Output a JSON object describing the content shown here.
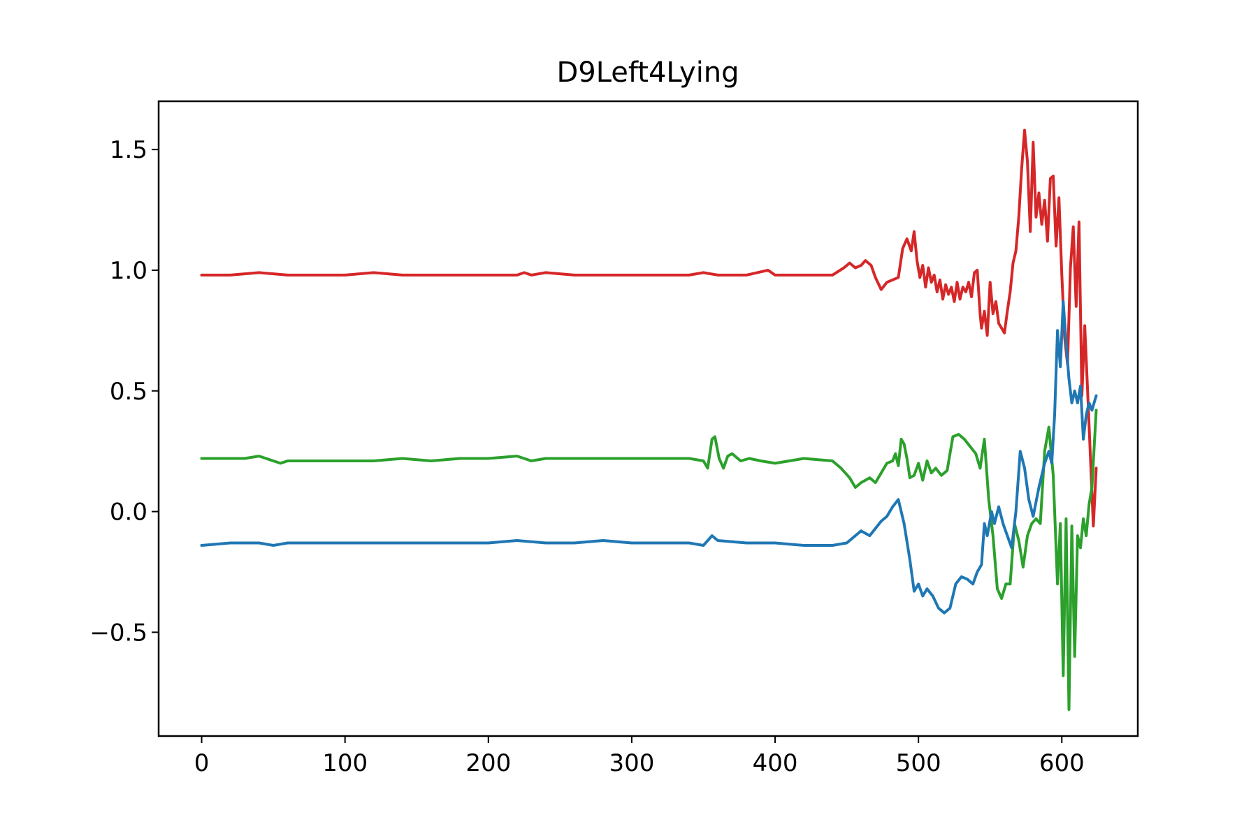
{
  "chart_data": {
    "type": "line",
    "title": "D9Left4Lying",
    "xlabel": "",
    "ylabel": "",
    "xlim": [
      -30,
      653
    ],
    "ylim": [
      -0.93,
      1.7
    ],
    "grid": false,
    "x_ticks": [
      {
        "value": 0,
        "label": "0"
      },
      {
        "value": 100,
        "label": "100"
      },
      {
        "value": 200,
        "label": "200"
      },
      {
        "value": 300,
        "label": "300"
      },
      {
        "value": 400,
        "label": "400"
      },
      {
        "value": 500,
        "label": "500"
      },
      {
        "value": 600,
        "label": "600"
      }
    ],
    "y_ticks": [
      {
        "value": -0.5,
        "label": "−0.5"
      },
      {
        "value": 0.0,
        "label": "0.0"
      },
      {
        "value": 0.5,
        "label": "0.5"
      },
      {
        "value": 1.0,
        "label": "1.0"
      },
      {
        "value": 1.5,
        "label": "1.5"
      }
    ],
    "series": [
      {
        "color": "#d62728",
        "points": [
          [
            0,
            0.98
          ],
          [
            20,
            0.98
          ],
          [
            40,
            0.99
          ],
          [
            60,
            0.98
          ],
          [
            80,
            0.98
          ],
          [
            100,
            0.98
          ],
          [
            120,
            0.99
          ],
          [
            140,
            0.98
          ],
          [
            160,
            0.98
          ],
          [
            180,
            0.98
          ],
          [
            200,
            0.98
          ],
          [
            220,
            0.98
          ],
          [
            225,
            0.99
          ],
          [
            230,
            0.98
          ],
          [
            240,
            0.99
          ],
          [
            260,
            0.98
          ],
          [
            280,
            0.98
          ],
          [
            300,
            0.98
          ],
          [
            320,
            0.98
          ],
          [
            340,
            0.98
          ],
          [
            350,
            0.99
          ],
          [
            360,
            0.98
          ],
          [
            380,
            0.98
          ],
          [
            395,
            1.0
          ],
          [
            400,
            0.98
          ],
          [
            420,
            0.98
          ],
          [
            440,
            0.98
          ],
          [
            448,
            1.01
          ],
          [
            452,
            1.03
          ],
          [
            456,
            1.01
          ],
          [
            460,
            1.02
          ],
          [
            463,
            1.04
          ],
          [
            467,
            1.02
          ],
          [
            470,
            0.97
          ],
          [
            474,
            0.92
          ],
          [
            478,
            0.95
          ],
          [
            482,
            0.96
          ],
          [
            486,
            0.97
          ],
          [
            489,
            1.09
          ],
          [
            492,
            1.13
          ],
          [
            495,
            1.08
          ],
          [
            497,
            1.16
          ],
          [
            499,
            1.04
          ],
          [
            501,
            0.97
          ],
          [
            503,
            1.02
          ],
          [
            505,
            0.93
          ],
          [
            507,
            1.01
          ],
          [
            509,
            0.95
          ],
          [
            511,
            0.98
          ],
          [
            513,
            0.91
          ],
          [
            515,
            0.96
          ],
          [
            517,
            0.88
          ],
          [
            519,
            0.94
          ],
          [
            521,
            0.9
          ],
          [
            523,
            0.93
          ],
          [
            525,
            0.87
          ],
          [
            527,
            0.95
          ],
          [
            529,
            0.88
          ],
          [
            531,
            0.93
          ],
          [
            533,
            0.91
          ],
          [
            535,
            0.95
          ],
          [
            537,
            0.89
          ],
          [
            539,
            0.99
          ],
          [
            541,
            1.0
          ],
          [
            543,
            0.82
          ],
          [
            544,
            0.76
          ],
          [
            546,
            0.83
          ],
          [
            548,
            0.73
          ],
          [
            550,
            0.95
          ],
          [
            552,
            0.82
          ],
          [
            554,
            0.87
          ],
          [
            556,
            0.78
          ],
          [
            558,
            0.76
          ],
          [
            560,
            0.74
          ],
          [
            562,
            0.83
          ],
          [
            564,
            0.91
          ],
          [
            566,
            1.03
          ],
          [
            568,
            1.08
          ],
          [
            570,
            1.22
          ],
          [
            572,
            1.42
          ],
          [
            574,
            1.58
          ],
          [
            576,
            1.45
          ],
          [
            578,
            1.16
          ],
          [
            580,
            1.53
          ],
          [
            582,
            1.22
          ],
          [
            584,
            1.32
          ],
          [
            586,
            1.19
          ],
          [
            588,
            1.29
          ],
          [
            590,
            1.12
          ],
          [
            592,
            1.38
          ],
          [
            594,
            1.39
          ],
          [
            596,
            1.1
          ],
          [
            598,
            1.3
          ],
          [
            600,
            0.98
          ],
          [
            602,
            0.72
          ],
          [
            604,
            0.61
          ],
          [
            606,
            1.01
          ],
          [
            608,
            1.18
          ],
          [
            610,
            0.85
          ],
          [
            612,
            1.2
          ],
          [
            614,
            0.48
          ],
          [
            616,
            0.77
          ],
          [
            618,
            0.5
          ],
          [
            620,
            0.22
          ],
          [
            622,
            -0.06
          ],
          [
            624,
            0.18
          ]
        ]
      },
      {
        "color": "#2ca02c",
        "points": [
          [
            0,
            0.22
          ],
          [
            20,
            0.22
          ],
          [
            30,
            0.22
          ],
          [
            40,
            0.23
          ],
          [
            50,
            0.21
          ],
          [
            55,
            0.2
          ],
          [
            60,
            0.21
          ],
          [
            80,
            0.21
          ],
          [
            100,
            0.21
          ],
          [
            120,
            0.21
          ],
          [
            140,
            0.22
          ],
          [
            160,
            0.21
          ],
          [
            180,
            0.22
          ],
          [
            200,
            0.22
          ],
          [
            220,
            0.23
          ],
          [
            230,
            0.21
          ],
          [
            240,
            0.22
          ],
          [
            260,
            0.22
          ],
          [
            280,
            0.22
          ],
          [
            300,
            0.22
          ],
          [
            320,
            0.22
          ],
          [
            340,
            0.22
          ],
          [
            350,
            0.21
          ],
          [
            353,
            0.18
          ],
          [
            356,
            0.3
          ],
          [
            358,
            0.31
          ],
          [
            361,
            0.22
          ],
          [
            364,
            0.18
          ],
          [
            367,
            0.23
          ],
          [
            370,
            0.24
          ],
          [
            376,
            0.21
          ],
          [
            382,
            0.22
          ],
          [
            390,
            0.21
          ],
          [
            400,
            0.2
          ],
          [
            410,
            0.21
          ],
          [
            420,
            0.22
          ],
          [
            440,
            0.21
          ],
          [
            446,
            0.18
          ],
          [
            452,
            0.14
          ],
          [
            456,
            0.1
          ],
          [
            460,
            0.12
          ],
          [
            466,
            0.14
          ],
          [
            470,
            0.12
          ],
          [
            474,
            0.16
          ],
          [
            478,
            0.2
          ],
          [
            482,
            0.21
          ],
          [
            484,
            0.24
          ],
          [
            486,
            0.19
          ],
          [
            488,
            0.3
          ],
          [
            490,
            0.28
          ],
          [
            492,
            0.22
          ],
          [
            494,
            0.14
          ],
          [
            497,
            0.15
          ],
          [
            500,
            0.2
          ],
          [
            503,
            0.13
          ],
          [
            506,
            0.21
          ],
          [
            509,
            0.16
          ],
          [
            512,
            0.18
          ],
          [
            516,
            0.15
          ],
          [
            520,
            0.17
          ],
          [
            524,
            0.31
          ],
          [
            528,
            0.32
          ],
          [
            532,
            0.3
          ],
          [
            536,
            0.27
          ],
          [
            540,
            0.24
          ],
          [
            543,
            0.18
          ],
          [
            546,
            0.3
          ],
          [
            549,
            0.05
          ],
          [
            552,
            -0.1
          ],
          [
            555,
            -0.32
          ],
          [
            558,
            -0.36
          ],
          [
            561,
            -0.3
          ],
          [
            564,
            -0.3
          ],
          [
            567,
            -0.05
          ],
          [
            570,
            -0.12
          ],
          [
            573,
            -0.23
          ],
          [
            576,
            -0.1
          ],
          [
            579,
            -0.05
          ],
          [
            582,
            -0.03
          ],
          [
            585,
            -0.05
          ],
          [
            588,
            0.25
          ],
          [
            591,
            0.35
          ],
          [
            594,
            0.15
          ],
          [
            597,
            -0.3
          ],
          [
            599,
            -0.05
          ],
          [
            601,
            -0.68
          ],
          [
            603,
            -0.03
          ],
          [
            605,
            -0.82
          ],
          [
            607,
            -0.06
          ],
          [
            609,
            -0.6
          ],
          [
            611,
            -0.1
          ],
          [
            613,
            -0.15
          ],
          [
            615,
            -0.03
          ],
          [
            617,
            -0.1
          ],
          [
            619,
            0.03
          ],
          [
            621,
            0.1
          ],
          [
            624,
            0.42
          ]
        ]
      },
      {
        "color": "#1f77b4",
        "points": [
          [
            0,
            -0.14
          ],
          [
            20,
            -0.13
          ],
          [
            40,
            -0.13
          ],
          [
            50,
            -0.14
          ],
          [
            60,
            -0.13
          ],
          [
            80,
            -0.13
          ],
          [
            100,
            -0.13
          ],
          [
            120,
            -0.13
          ],
          [
            140,
            -0.13
          ],
          [
            160,
            -0.13
          ],
          [
            180,
            -0.13
          ],
          [
            200,
            -0.13
          ],
          [
            220,
            -0.12
          ],
          [
            240,
            -0.13
          ],
          [
            260,
            -0.13
          ],
          [
            280,
            -0.12
          ],
          [
            300,
            -0.13
          ],
          [
            320,
            -0.13
          ],
          [
            340,
            -0.13
          ],
          [
            350,
            -0.14
          ],
          [
            356,
            -0.1
          ],
          [
            360,
            -0.12
          ],
          [
            380,
            -0.13
          ],
          [
            400,
            -0.13
          ],
          [
            420,
            -0.14
          ],
          [
            440,
            -0.14
          ],
          [
            450,
            -0.13
          ],
          [
            460,
            -0.08
          ],
          [
            466,
            -0.1
          ],
          [
            470,
            -0.07
          ],
          [
            474,
            -0.04
          ],
          [
            478,
            -0.02
          ],
          [
            482,
            0.02
          ],
          [
            486,
            0.05
          ],
          [
            490,
            -0.05
          ],
          [
            494,
            -0.2
          ],
          [
            497,
            -0.33
          ],
          [
            500,
            -0.3
          ],
          [
            503,
            -0.35
          ],
          [
            506,
            -0.32
          ],
          [
            510,
            -0.35
          ],
          [
            514,
            -0.4
          ],
          [
            518,
            -0.42
          ],
          [
            522,
            -0.4
          ],
          [
            526,
            -0.3
          ],
          [
            530,
            -0.27
          ],
          [
            534,
            -0.28
          ],
          [
            538,
            -0.3
          ],
          [
            541,
            -0.25
          ],
          [
            544,
            -0.22
          ],
          [
            546,
            -0.05
          ],
          [
            548,
            -0.1
          ],
          [
            551,
            0.0
          ],
          [
            553,
            -0.05
          ],
          [
            556,
            0.02
          ],
          [
            559,
            -0.05
          ],
          [
            562,
            -0.1
          ],
          [
            565,
            -0.15
          ],
          [
            568,
            0.0
          ],
          [
            571,
            0.25
          ],
          [
            574,
            0.18
          ],
          [
            577,
            0.05
          ],
          [
            580,
            -0.02
          ],
          [
            584,
            0.1
          ],
          [
            588,
            0.2
          ],
          [
            591,
            0.25
          ],
          [
            593,
            0.2
          ],
          [
            595,
            0.4
          ],
          [
            597,
            0.75
          ],
          [
            599,
            0.6
          ],
          [
            601,
            0.87
          ],
          [
            603,
            0.7
          ],
          [
            605,
            0.55
          ],
          [
            607,
            0.45
          ],
          [
            609,
            0.5
          ],
          [
            611,
            0.45
          ],
          [
            613,
            0.52
          ],
          [
            615,
            0.3
          ],
          [
            617,
            0.4
          ],
          [
            619,
            0.45
          ],
          [
            621,
            0.42
          ],
          [
            624,
            0.48
          ]
        ]
      }
    ]
  }
}
